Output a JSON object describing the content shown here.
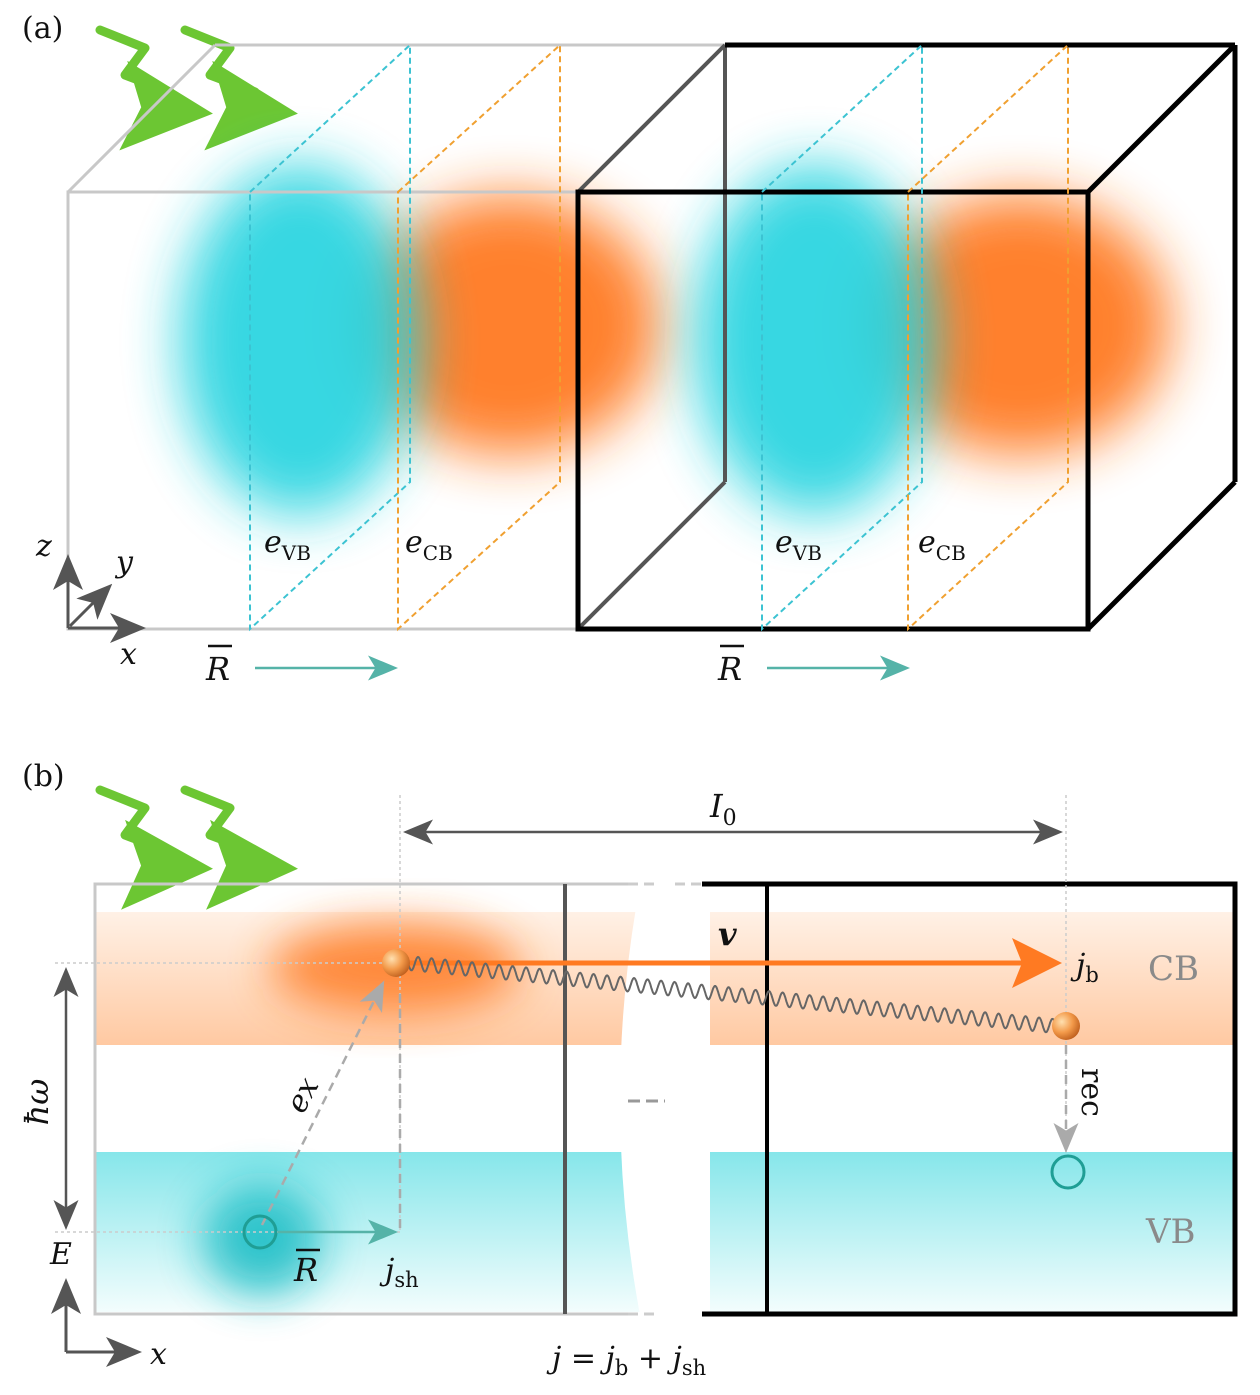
{
  "panel_a": {
    "label": "(a)",
    "e_vb_base": "e",
    "e_vb_sub": "VB",
    "e_cb_base": "e",
    "e_cb_sub": "CB",
    "r_label": "R",
    "axis_x": "x",
    "axis_y": "y",
    "axis_z": "z",
    "colors": {
      "vb": "#22d3df",
      "cb": "#ff7a22",
      "vb_plane": "#3cc3d2",
      "cb_plane": "#f0a030",
      "r_arrow": "#55b3a8",
      "photon": "#6cc633"
    }
  },
  "panel_b": {
    "label": "(b)",
    "i0_base": "I",
    "i0_sub": "0",
    "v_label": "v",
    "jb_base": "j",
    "jb_sub": "b",
    "jsh_base": "j",
    "jsh_sub": "sh",
    "cb_label": "CB",
    "vb_label": "VB",
    "ex_label": "ex",
    "rec_label": "rec",
    "hw_label": "ħω",
    "e_axis": "E",
    "x_axis": "x",
    "r_label": "R",
    "eq_lhs": "j",
    "eq_sign": " = ",
    "eq_t1_base": "j",
    "eq_t1_sub": "b",
    "eq_plus": " + ",
    "eq_t2_base": "j",
    "eq_t2_sub": "sh",
    "colors": {
      "cb_band": "#ffd2b0",
      "vb_band": "#a8eef0",
      "hole": "#1f9e95",
      "arrow_v": "#ff7a22"
    }
  }
}
